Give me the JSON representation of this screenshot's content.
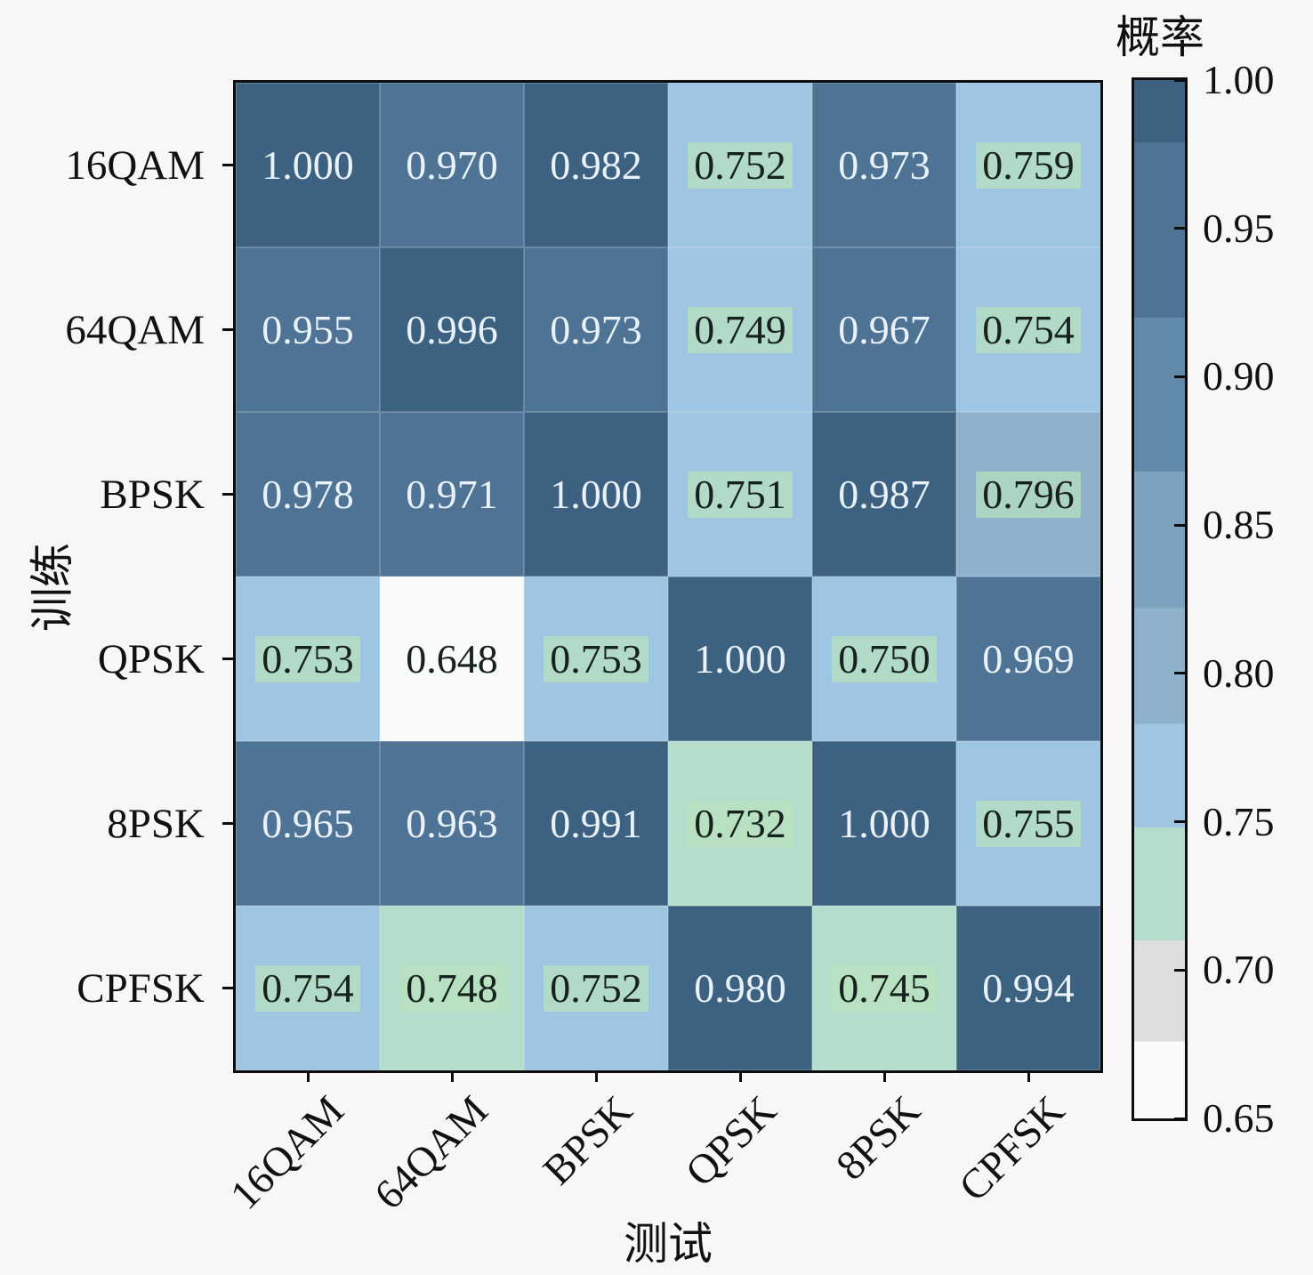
{
  "figure": {
    "background": "#f7f7f7",
    "border_color": "#0d0d0d"
  },
  "chart_data": {
    "type": "heatmap",
    "title": "",
    "xlabel": "测试",
    "ylabel": "训练",
    "colorbar_label": "概率",
    "categories_x": [
      "16QAM",
      "64QAM",
      "BPSK",
      "QPSK",
      "8PSK",
      "CPFSK"
    ],
    "categories_y": [
      "16QAM",
      "64QAM",
      "BPSK",
      "QPSK",
      "8PSK",
      "CPFSK"
    ],
    "values": [
      [
        1.0,
        0.97,
        0.982,
        0.752,
        0.973,
        0.759
      ],
      [
        0.955,
        0.996,
        0.973,
        0.749,
        0.967,
        0.754
      ],
      [
        0.978,
        0.971,
        1.0,
        0.751,
        0.987,
        0.796
      ],
      [
        0.753,
        0.648,
        0.753,
        1.0,
        0.75,
        0.969
      ],
      [
        0.965,
        0.963,
        0.991,
        0.732,
        1.0,
        0.755
      ],
      [
        0.754,
        0.748,
        0.752,
        0.98,
        0.745,
        0.994
      ]
    ],
    "value_decimals": 3,
    "vmin": 0.65,
    "vmax": 1.0,
    "colorbar_ticks": [
      {
        "value": 1.0,
        "label": "1.00"
      },
      {
        "value": 0.95,
        "label": "0.95"
      },
      {
        "value": 0.9,
        "label": "0.90"
      },
      {
        "value": 0.85,
        "label": "0.85"
      },
      {
        "value": 0.8,
        "label": "0.80"
      },
      {
        "value": 0.75,
        "label": "0.75"
      },
      {
        "value": 0.7,
        "label": "0.70"
      },
      {
        "value": 0.65,
        "label": "0.65"
      }
    ],
    "colormap_bands": [
      {
        "upto": 0.676,
        "color": "#f9fafa"
      },
      {
        "upto": 0.71,
        "color": "#dcdfde"
      },
      {
        "upto": 0.748,
        "color": "#b4ddcb"
      },
      {
        "upto": 0.783,
        "color": "#9ec5e1"
      },
      {
        "upto": 0.822,
        "color": "#8eb2cc"
      },
      {
        "upto": 0.868,
        "color": "#7ba3c0"
      },
      {
        "upto": 0.92,
        "color": "#6189a9"
      },
      {
        "upto": 0.979,
        "color": "#4e7394"
      },
      {
        "upto": 1.001,
        "color": "#3c6181"
      }
    ],
    "text_color_light": "#e9f2fa",
    "text_color_dark": "#17211d",
    "light_text_threshold": 0.9,
    "dark_text_highlight": "rgba(184,226,188,0.72)",
    "highlight_min_value": 0.705,
    "legend_position": "right",
    "grid": false
  }
}
